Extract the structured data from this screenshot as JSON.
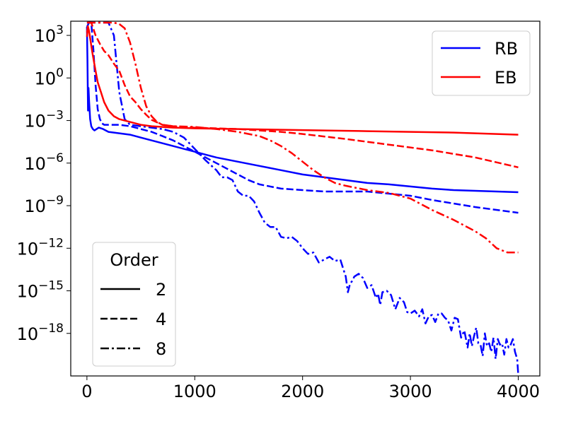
{
  "chart_data": {
    "type": "line",
    "title": "",
    "xlabel": "",
    "ylabel": "",
    "xlim": [
      -150,
      4200
    ],
    "ylim_log10": [
      -21,
      4
    ],
    "y_scale": "log",
    "x_ticks": [
      0,
      1000,
      2000,
      3000,
      4000
    ],
    "x_tick_labels": [
      "0",
      "1000",
      "2000",
      "3000",
      "4000"
    ],
    "y_ticks_log10": [
      3,
      0,
      -3,
      -6,
      -9,
      -12,
      -15,
      -18
    ],
    "y_tick_labels": [
      {
        "base": "10",
        "exp": "3"
      },
      {
        "base": "10",
        "exp": "0"
      },
      {
        "base": "10",
        "exp": "−3"
      },
      {
        "base": "10",
        "exp": "−6"
      },
      {
        "base": "10",
        "exp": "−9"
      },
      {
        "base": "10",
        "exp": "−12"
      },
      {
        "base": "10",
        "exp": "−15"
      },
      {
        "base": "10",
        "exp": "−18"
      }
    ],
    "grid": false,
    "colors": {
      "RB": "#0000ff",
      "EB": "#ff0000"
    },
    "legend_method": {
      "placement": "top-right",
      "entries": [
        {
          "label": "RB",
          "color": "#0000ff"
        },
        {
          "label": "EB",
          "color": "#ff0000"
        }
      ]
    },
    "legend_order": {
      "placement": "bottom-left",
      "title": "Order",
      "entries": [
        {
          "label": "2",
          "dash": "solid"
        },
        {
          "label": "4",
          "dash": "dashed"
        },
        {
          "label": "8",
          "dash": "dashdot"
        }
      ]
    },
    "series": [
      {
        "method": "RB",
        "order": "2",
        "color": "#0000ff",
        "dash": "solid",
        "points": [
          [
            0,
            3.6
          ],
          [
            5,
            1.3
          ],
          [
            10,
            -2.3
          ],
          [
            15,
            -0.7
          ],
          [
            20,
            -1.6
          ],
          [
            30,
            -2.9
          ],
          [
            40,
            -3.4
          ],
          [
            55,
            -3.6
          ],
          [
            70,
            -3.7
          ],
          [
            90,
            -3.6
          ],
          [
            110,
            -3.5
          ],
          [
            150,
            -3.6
          ],
          [
            200,
            -3.8
          ],
          [
            300,
            -3.9
          ],
          [
            400,
            -4.0
          ],
          [
            500,
            -4.2
          ],
          [
            600,
            -4.4
          ],
          [
            700,
            -4.6
          ],
          [
            800,
            -4.8
          ],
          [
            900,
            -5.0
          ],
          [
            1000,
            -5.2
          ],
          [
            1100,
            -5.4
          ],
          [
            1200,
            -5.6
          ],
          [
            1400,
            -5.9
          ],
          [
            1600,
            -6.2
          ],
          [
            1800,
            -6.5
          ],
          [
            2000,
            -6.8
          ],
          [
            2200,
            -7.0
          ],
          [
            2400,
            -7.2
          ],
          [
            2600,
            -7.4
          ],
          [
            2800,
            -7.5
          ],
          [
            3000,
            -7.65
          ],
          [
            3200,
            -7.8
          ],
          [
            3400,
            -7.9
          ],
          [
            3600,
            -7.95
          ],
          [
            3800,
            -8.0
          ],
          [
            4000,
            -8.05
          ]
        ]
      },
      {
        "method": "RB",
        "order": "4",
        "color": "#0000ff",
        "dash": "dashed",
        "points": [
          [
            0,
            3.6
          ],
          [
            20,
            3.9
          ],
          [
            40,
            3.9
          ],
          [
            60,
            2.0
          ],
          [
            80,
            -0.5
          ],
          [
            100,
            -2.2
          ],
          [
            120,
            -2.9
          ],
          [
            140,
            -3.2
          ],
          [
            160,
            -3.3
          ],
          [
            200,
            -3.3
          ],
          [
            300,
            -3.3
          ],
          [
            400,
            -3.4
          ],
          [
            500,
            -3.6
          ],
          [
            600,
            -3.8
          ],
          [
            700,
            -4.1
          ],
          [
            800,
            -4.4
          ],
          [
            900,
            -4.8
          ],
          [
            1000,
            -5.2
          ],
          [
            1100,
            -5.6
          ],
          [
            1200,
            -6.0
          ],
          [
            1300,
            -6.4
          ],
          [
            1400,
            -6.8
          ],
          [
            1500,
            -7.2
          ],
          [
            1600,
            -7.5
          ],
          [
            1800,
            -7.8
          ],
          [
            2000,
            -7.9
          ],
          [
            2200,
            -8.0
          ],
          [
            2600,
            -8.0
          ],
          [
            3000,
            -8.3
          ],
          [
            3200,
            -8.6
          ],
          [
            3600,
            -9.1
          ],
          [
            4000,
            -9.5
          ]
        ]
      },
      {
        "method": "RB",
        "order": "8",
        "color": "#0000ff",
        "dash": "dashdot",
        "points": [
          [
            0,
            3.9
          ],
          [
            200,
            3.9
          ],
          [
            250,
            3.0
          ],
          [
            300,
            -1.0
          ],
          [
            350,
            -2.9
          ],
          [
            400,
            -3.3
          ],
          [
            600,
            -3.5
          ],
          [
            700,
            -3.6
          ],
          [
            800,
            -3.8
          ],
          [
            900,
            -4.2
          ],
          [
            1000,
            -5.0
          ],
          [
            1050,
            -5.4
          ],
          [
            1100,
            -5.8
          ],
          [
            1200,
            -6.5
          ],
          [
            1250,
            -7.0
          ],
          [
            1300,
            -7.0
          ],
          [
            1350,
            -7.2
          ],
          [
            1400,
            -8.0
          ],
          [
            1450,
            -8.3
          ],
          [
            1500,
            -8.3
          ],
          [
            1550,
            -8.7
          ],
          [
            1600,
            -9.5
          ],
          [
            1650,
            -10.2
          ],
          [
            1700,
            -10.5
          ],
          [
            1750,
            -10.5
          ],
          [
            1800,
            -11.2
          ],
          [
            1850,
            -11.3
          ],
          [
            1900,
            -11.2
          ],
          [
            1950,
            -11.5
          ],
          [
            2000,
            -12.0
          ],
          [
            2050,
            -12.4
          ],
          [
            2100,
            -12.3
          ],
          [
            2150,
            -13.0
          ],
          [
            2200,
            -12.8
          ],
          [
            2250,
            -12.6
          ],
          [
            2300,
            -12.9
          ],
          [
            2350,
            -12.8
          ],
          [
            2400,
            -14.0
          ],
          [
            2420,
            -15.1
          ],
          [
            2440,
            -14.5
          ],
          [
            2460,
            -14.3
          ],
          [
            2480,
            -14.0
          ],
          [
            2520,
            -13.8
          ],
          [
            2560,
            -14.1
          ],
          [
            2600,
            -14.8
          ],
          [
            2640,
            -14.6
          ],
          [
            2680,
            -15.5
          ],
          [
            2700,
            -15.2
          ],
          [
            2720,
            -16.0
          ],
          [
            2740,
            -15.1
          ],
          [
            2780,
            -15.0
          ],
          [
            2820,
            -15.3
          ],
          [
            2860,
            -16.3
          ],
          [
            2900,
            -15.5
          ],
          [
            2940,
            -15.8
          ],
          [
            2970,
            -16.5
          ],
          [
            3000,
            -16.6
          ],
          [
            3040,
            -16.4
          ],
          [
            3080,
            -16.8
          ],
          [
            3110,
            -16.3
          ],
          [
            3140,
            -17.3
          ],
          [
            3170,
            -16.8
          ],
          [
            3200,
            -16.7
          ],
          [
            3230,
            -17.2
          ],
          [
            3260,
            -16.6
          ],
          [
            3290,
            -16.6
          ],
          [
            3320,
            -16.9
          ],
          [
            3350,
            -17.1
          ],
          [
            3380,
            -17.8
          ],
          [
            3410,
            -16.9
          ],
          [
            3440,
            -17.0
          ],
          [
            3470,
            -18.3
          ],
          [
            3500,
            -17.8
          ],
          [
            3530,
            -19.0
          ],
          [
            3550,
            -18.0
          ],
          [
            3570,
            -18.9
          ],
          [
            3590,
            -18.2
          ],
          [
            3610,
            -17.6
          ],
          [
            3630,
            -18.7
          ],
          [
            3650,
            -18.8
          ],
          [
            3670,
            -19.6
          ],
          [
            3690,
            -18.0
          ],
          [
            3710,
            -18.9
          ],
          [
            3730,
            -18.7
          ],
          [
            3750,
            -19.3
          ],
          [
            3770,
            -18.3
          ],
          [
            3790,
            -19.8
          ],
          [
            3810,
            -18.4
          ],
          [
            3830,
            -18.8
          ],
          [
            3850,
            -18.7
          ],
          [
            3870,
            -19.5
          ],
          [
            3890,
            -18.4
          ],
          [
            3910,
            -19.0
          ],
          [
            3930,
            -18.8
          ],
          [
            3950,
            -18.4
          ],
          [
            3970,
            -19.3
          ],
          [
            3990,
            -19.8
          ],
          [
            4000,
            -20.9
          ]
        ]
      },
      {
        "method": "EB",
        "order": "2",
        "color": "#ff0000",
        "dash": "solid",
        "points": [
          [
            0,
            2.9
          ],
          [
            10,
            3.6
          ],
          [
            20,
            3.3
          ],
          [
            50,
            1.8
          ],
          [
            80,
            0.5
          ],
          [
            100,
            -0.3
          ],
          [
            130,
            -1.0
          ],
          [
            160,
            -1.7
          ],
          [
            200,
            -2.3
          ],
          [
            250,
            -2.7
          ],
          [
            300,
            -2.9
          ],
          [
            400,
            -3.1
          ],
          [
            500,
            -3.3
          ],
          [
            600,
            -3.4
          ],
          [
            800,
            -3.5
          ],
          [
            1000,
            -3.55
          ],
          [
            1400,
            -3.6
          ],
          [
            1800,
            -3.65
          ],
          [
            2200,
            -3.7
          ],
          [
            2600,
            -3.75
          ],
          [
            3000,
            -3.8
          ],
          [
            3400,
            -3.85
          ],
          [
            3800,
            -3.95
          ],
          [
            4000,
            -4.0
          ]
        ]
      },
      {
        "method": "EB",
        "order": "4",
        "color": "#ff0000",
        "dash": "dashed",
        "points": [
          [
            0,
            3.2
          ],
          [
            15,
            3.9
          ],
          [
            40,
            3.9
          ],
          [
            80,
            3.0
          ],
          [
            120,
            2.4
          ],
          [
            160,
            1.9
          ],
          [
            200,
            1.6
          ],
          [
            250,
            1.0
          ],
          [
            300,
            0.5
          ],
          [
            350,
            -0.5
          ],
          [
            400,
            -1.3
          ],
          [
            450,
            -1.7
          ],
          [
            500,
            -2.2
          ],
          [
            550,
            -2.6
          ],
          [
            600,
            -2.95
          ],
          [
            700,
            -3.3
          ],
          [
            800,
            -3.4
          ],
          [
            1000,
            -3.5
          ],
          [
            1200,
            -3.55
          ],
          [
            1400,
            -3.6
          ],
          [
            1600,
            -3.7
          ],
          [
            1800,
            -3.8
          ],
          [
            2000,
            -3.95
          ],
          [
            2400,
            -4.3
          ],
          [
            2800,
            -4.7
          ],
          [
            3200,
            -5.1
          ],
          [
            3600,
            -5.6
          ],
          [
            4000,
            -6.3
          ]
        ]
      },
      {
        "method": "EB",
        "order": "8",
        "color": "#ff0000",
        "dash": "dashdot",
        "points": [
          [
            0,
            3.9
          ],
          [
            100,
            3.9
          ],
          [
            250,
            3.9
          ],
          [
            300,
            3.8
          ],
          [
            350,
            3.5
          ],
          [
            400,
            2.5
          ],
          [
            450,
            1.0
          ],
          [
            500,
            -0.7
          ],
          [
            550,
            -2.0
          ],
          [
            600,
            -2.7
          ],
          [
            650,
            -3.1
          ],
          [
            700,
            -3.3
          ],
          [
            800,
            -3.4
          ],
          [
            1000,
            -3.45
          ],
          [
            1200,
            -3.6
          ],
          [
            1400,
            -3.8
          ],
          [
            1600,
            -4.1
          ],
          [
            1700,
            -4.4
          ],
          [
            1800,
            -4.8
          ],
          [
            1900,
            -5.3
          ],
          [
            2000,
            -5.9
          ],
          [
            2100,
            -6.5
          ],
          [
            2200,
            -7.0
          ],
          [
            2300,
            -7.4
          ],
          [
            2400,
            -7.6
          ],
          [
            2600,
            -7.9
          ],
          [
            2800,
            -8.1
          ],
          [
            3000,
            -8.5
          ],
          [
            3200,
            -9.3
          ],
          [
            3400,
            -10.0
          ],
          [
            3600,
            -10.8
          ],
          [
            3700,
            -11.3
          ],
          [
            3800,
            -12.0
          ],
          [
            3900,
            -12.3
          ],
          [
            4000,
            -12.3
          ]
        ]
      }
    ]
  }
}
